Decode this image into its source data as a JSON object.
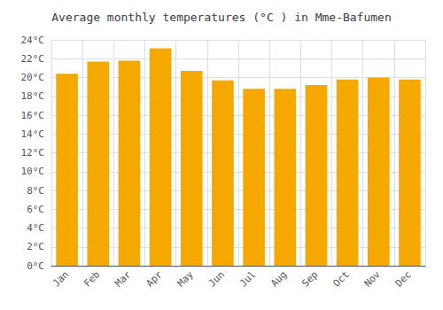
{
  "chart_data": {
    "type": "bar",
    "title": "Average monthly temperatures (°C ) in Mme-Bafumen",
    "categories": [
      "Jan",
      "Feb",
      "Mar",
      "Apr",
      "May",
      "Jun",
      "Jul",
      "Aug",
      "Sep",
      "Oct",
      "Nov",
      "Dec"
    ],
    "values": [
      20.4,
      21.7,
      21.8,
      23.1,
      20.7,
      19.7,
      18.8,
      18.8,
      19.2,
      19.8,
      20.0,
      19.8
    ],
    "color": "#F5A800",
    "ylim": [
      0,
      24
    ],
    "yticks": [
      {
        "value": 0,
        "label": "0°C"
      },
      {
        "value": 2,
        "label": "2°C"
      },
      {
        "value": 4,
        "label": "4°C"
      },
      {
        "value": 6,
        "label": "6°C"
      },
      {
        "value": 8,
        "label": "8°C"
      },
      {
        "value": 10,
        "label": "10°C"
      },
      {
        "value": 12,
        "label": "12°C"
      },
      {
        "value": 14,
        "label": "14°C"
      },
      {
        "value": 16,
        "label": "16°C"
      },
      {
        "value": 18,
        "label": "18°C"
      },
      {
        "value": 20,
        "label": "20°C"
      },
      {
        "value": 22,
        "label": "22°C"
      },
      {
        "value": 24,
        "label": "24°C"
      }
    ],
    "grid": true
  }
}
